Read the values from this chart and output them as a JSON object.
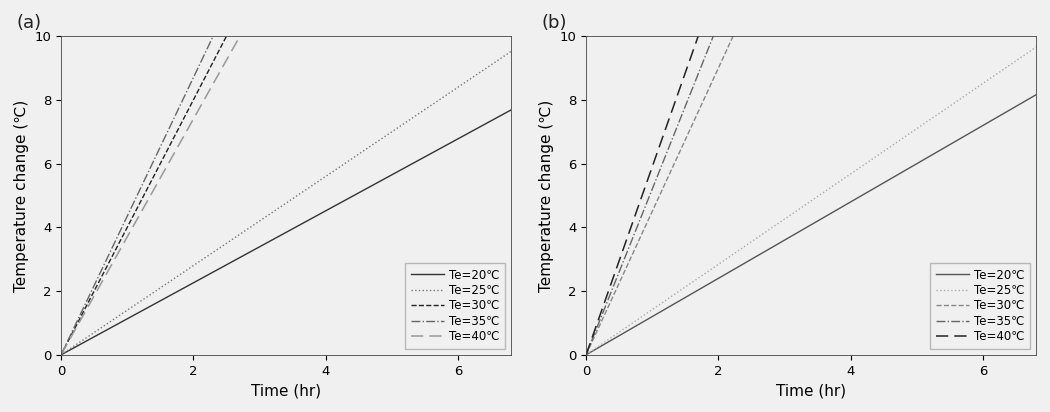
{
  "panel_a": {
    "label": "(a)",
    "series": [
      {
        "name": "Te=20℃",
        "slope": 1.13,
        "color": "#333333",
        "linestyle": "solid",
        "linewidth": 1.0
      },
      {
        "name": "Te=25℃",
        "slope": 1.4,
        "color": "#777777",
        "linestyle": "dotted",
        "linewidth": 1.0
      },
      {
        "name": "Te=30℃",
        "slope": 4.0,
        "color": "#222222",
        "linestyle": "dashed",
        "linewidth": 1.0
      },
      {
        "name": "Te=35℃",
        "slope": 4.35,
        "color": "#666666",
        "linestyle": "dashdot",
        "linewidth": 1.0
      },
      {
        "name": "Te=40℃",
        "slope": 3.7,
        "color": "#999999",
        "linestyle": "loosedash",
        "linewidth": 1.1
      }
    ]
  },
  "panel_b": {
    "label": "(b)",
    "series": [
      {
        "name": "Te=20℃",
        "slope": 1.2,
        "color": "#555555",
        "linestyle": "solid",
        "linewidth": 1.0
      },
      {
        "name": "Te=25℃",
        "slope": 1.42,
        "color": "#aaaaaa",
        "linestyle": "dotted",
        "linewidth": 1.0
      },
      {
        "name": "Te=30℃",
        "slope": 4.5,
        "color": "#888888",
        "linestyle": "dashed",
        "linewidth": 1.0
      },
      {
        "name": "Te=35℃",
        "slope": 5.2,
        "color": "#666666",
        "linestyle": "dashdot",
        "linewidth": 1.0
      },
      {
        "name": "Te=40℃",
        "slope": 5.9,
        "color": "#222222",
        "linestyle": "loosedash",
        "linewidth": 1.1
      }
    ]
  },
  "xlim": [
    0,
    6.8
  ],
  "ylim": [
    0,
    10
  ],
  "xticks": [
    0,
    2,
    4,
    6
  ],
  "yticks": [
    0,
    2,
    4,
    6,
    8,
    10
  ],
  "xlabel": "Time (hr)",
  "ylabel": "Temperature change (℃)",
  "background_color": "#f5f5f5",
  "label_fontsize": 11,
  "tick_fontsize": 9.5,
  "legend_fontsize": 8.5
}
